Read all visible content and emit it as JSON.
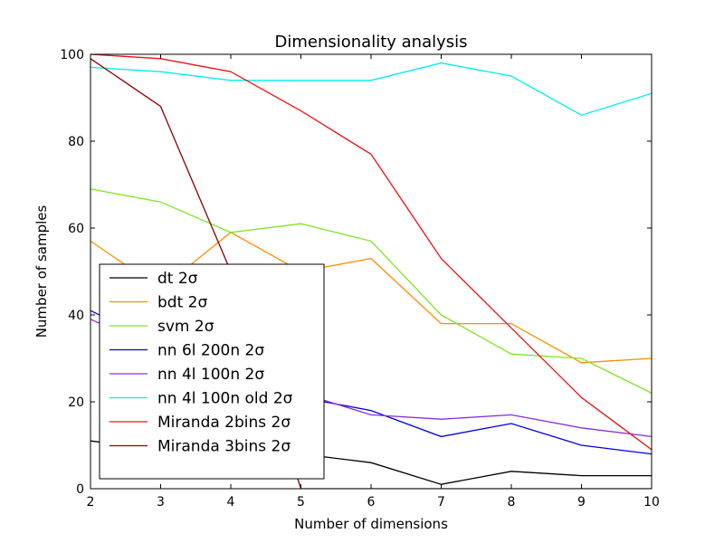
{
  "chart_data": {
    "type": "line",
    "title": "Dimensionality analysis",
    "xlabel": "Number of dimensions",
    "ylabel": "Number of samples",
    "xlim": [
      2,
      10
    ],
    "ylim": [
      0,
      100
    ],
    "x": [
      2,
      3,
      4,
      5,
      6,
      7,
      8,
      9,
      10
    ],
    "xticks": [
      "2",
      "3",
      "4",
      "5",
      "6",
      "7",
      "8",
      "9",
      "10"
    ],
    "yticks": [
      "0",
      "20",
      "40",
      "60",
      "80",
      "100"
    ],
    "grid": false,
    "legend_position": "lower-left",
    "series": [
      {
        "name": "dt 2σ",
        "color": "#000000",
        "values": [
          11,
          9,
          8,
          8,
          6,
          1,
          4,
          3,
          3
        ]
      },
      {
        "name": "bdt 2σ",
        "color": "#ff8c00",
        "values": [
          57,
          46,
          59,
          50,
          53,
          38,
          38,
          29,
          30
        ]
      },
      {
        "name": "svm 2σ",
        "color": "#7fe620",
        "values": [
          69,
          66,
          59,
          61,
          57,
          40,
          31,
          30,
          22
        ]
      },
      {
        "name": "nn 6l 200n 2σ",
        "color": "#0000e0",
        "values": [
          41,
          33,
          28,
          21,
          18,
          12,
          15,
          10,
          8
        ]
      },
      {
        "name": "nn 4l 100n 2σ",
        "color": "#8a2be2",
        "values": [
          39,
          32,
          27,
          22,
          17,
          16,
          17,
          14,
          12
        ]
      },
      {
        "name": "nn 4l 100n old 2σ",
        "color": "#00eeee",
        "values": [
          97,
          96,
          94,
          94,
          94,
          98,
          95,
          86,
          91
        ]
      },
      {
        "name": "Miranda 2bins 2σ",
        "color": "#ee1111",
        "values": [
          100,
          99,
          96,
          87,
          77,
          53,
          37,
          21,
          9
        ]
      },
      {
        "name": "Miranda 3bins 2σ",
        "color": "#8b0000",
        "values": [
          99,
          88,
          50,
          0,
          0,
          0,
          0,
          0,
          0
        ]
      }
    ]
  }
}
